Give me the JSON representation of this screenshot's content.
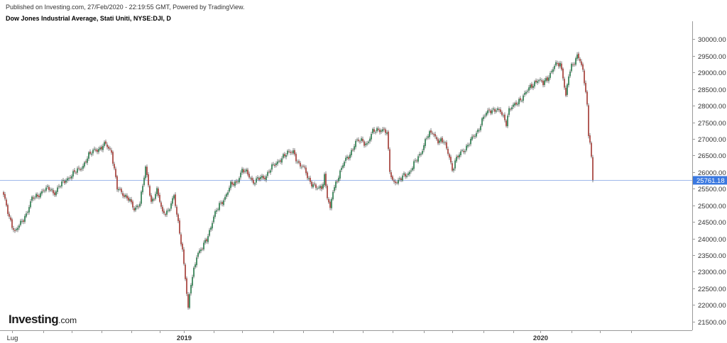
{
  "header": {
    "published": "Published on Investing.com, 27/Feb/2020 - 22:19:55 GMT, Powered by TradingView.",
    "title": "Dow Jones Industrial Average, Stati Uniti, NYSE:DJI, D"
  },
  "logo": {
    "main": "Investing",
    "suffix": ".com"
  },
  "chart_data": {
    "type": "candlestick",
    "title": "Dow Jones Industrial Average, Stati Uniti, NYSE:DJI, D",
    "ylim": [
      21300,
      30500
    ],
    "y_ticks": [
      30000,
      29500,
      29000,
      28500,
      28000,
      27500,
      27000,
      26500,
      26000,
      25500,
      25000,
      24500,
      24000,
      23500,
      23000,
      22500,
      22000,
      21500
    ],
    "y_tick_labels": [
      "30000.00",
      "29500.00",
      "29000.00",
      "28500.00",
      "28000.00",
      "27500.00",
      "27000.00",
      "26500.00",
      "26000.00",
      "25500.00",
      "25000.00",
      "24500.00",
      "24000.00",
      "23500.00",
      "23000.00",
      "22500.00",
      "22000.00",
      "21500.00"
    ],
    "x_labels": [
      {
        "label": "Lug",
        "index": 6,
        "bold": false
      },
      {
        "label": "2019",
        "index": 127,
        "bold": true
      },
      {
        "label": "2020",
        "index": 378,
        "bold": true
      }
    ],
    "x_minor_ticks": [
      28,
      48,
      69,
      90,
      110,
      148,
      168,
      190,
      211,
      232,
      253,
      274,
      296,
      316,
      338,
      359,
      400,
      420,
      442
    ],
    "price_line": {
      "value": 25761.18,
      "label": "25761.18",
      "color": "#3a78e0"
    },
    "up_color": "#2e7d4f",
    "down_color": "#a5403a",
    "grid": false,
    "anchors": [
      [
        0,
        25280
      ],
      [
        4,
        24650
      ],
      [
        8,
        24180
      ],
      [
        12,
        24450
      ],
      [
        16,
        24750
      ],
      [
        20,
        25180
      ],
      [
        24,
        25300
      ],
      [
        28,
        25450
      ],
      [
        32,
        25500
      ],
      [
        36,
        25380
      ],
      [
        40,
        25600
      ],
      [
        44,
        25780
      ],
      [
        48,
        25900
      ],
      [
        52,
        26050
      ],
      [
        56,
        26200
      ],
      [
        60,
        26480
      ],
      [
        64,
        26700
      ],
      [
        68,
        26680
      ],
      [
        72,
        26850
      ],
      [
        76,
        26620
      ],
      [
        80,
        25500
      ],
      [
        84,
        25350
      ],
      [
        88,
        25200
      ],
      [
        92,
        24850
      ],
      [
        96,
        25100
      ],
      [
        100,
        26100
      ],
      [
        104,
        25100
      ],
      [
        108,
        25450
      ],
      [
        112,
        24750
      ],
      [
        116,
        24850
      ],
      [
        120,
        25250
      ],
      [
        124,
        24200
      ],
      [
        126,
        23650
      ],
      [
        128,
        22800
      ],
      [
        130,
        21850
      ],
      [
        132,
        22650
      ],
      [
        136,
        23500
      ],
      [
        140,
        23700
      ],
      [
        144,
        24100
      ],
      [
        148,
        24650
      ],
      [
        152,
        25000
      ],
      [
        156,
        25250
      ],
      [
        160,
        25600
      ],
      [
        164,
        25700
      ],
      [
        168,
        26050
      ],
      [
        172,
        25950
      ],
      [
        176,
        25700
      ],
      [
        180,
        25800
      ],
      [
        184,
        25850
      ],
      [
        188,
        26100
      ],
      [
        192,
        26250
      ],
      [
        196,
        26450
      ],
      [
        200,
        26550
      ],
      [
        204,
        26650
      ],
      [
        208,
        26200
      ],
      [
        212,
        26100
      ],
      [
        216,
        25700
      ],
      [
        220,
        25500
      ],
      [
        224,
        25550
      ],
      [
        226,
        25900
      ],
      [
        228,
        25250
      ],
      [
        230,
        24850
      ],
      [
        232,
        25450
      ],
      [
        236,
        25900
      ],
      [
        240,
        26300
      ],
      [
        244,
        26550
      ],
      [
        248,
        26900
      ],
      [
        252,
        26950
      ],
      [
        256,
        26850
      ],
      [
        260,
        27200
      ],
      [
        264,
        27300
      ],
      [
        268,
        27250
      ],
      [
        270,
        27150
      ],
      [
        272,
        26050
      ],
      [
        274,
        25750
      ],
      [
        278,
        25700
      ],
      [
        282,
        25900
      ],
      [
        286,
        26000
      ],
      [
        290,
        26300
      ],
      [
        294,
        26600
      ],
      [
        298,
        27050
      ],
      [
        302,
        27200
      ],
      [
        306,
        26950
      ],
      [
        310,
        26900
      ],
      [
        314,
        26500
      ],
      [
        316,
        26050
      ],
      [
        318,
        26300
      ],
      [
        322,
        26600
      ],
      [
        326,
        26750
      ],
      [
        330,
        27000
      ],
      [
        334,
        27250
      ],
      [
        338,
        27650
      ],
      [
        342,
        27850
      ],
      [
        346,
        27900
      ],
      [
        350,
        27800
      ],
      [
        354,
        27500
      ],
      [
        356,
        27900
      ],
      [
        360,
        28000
      ],
      [
        364,
        28200
      ],
      [
        368,
        28400
      ],
      [
        372,
        28600
      ],
      [
        376,
        28800
      ],
      [
        380,
        28650
      ],
      [
        384,
        28900
      ],
      [
        388,
        29200
      ],
      [
        392,
        29250
      ],
      [
        394,
        28900
      ],
      [
        396,
        28300
      ],
      [
        398,
        28900
      ],
      [
        400,
        29150
      ],
      [
        402,
        29300
      ],
      [
        404,
        29550
      ],
      [
        406,
        29400
      ],
      [
        407,
        29200
      ],
      [
        408,
        29000
      ],
      [
        410,
        28400
      ],
      [
        411,
        27950
      ],
      [
        412,
        27100
      ],
      [
        413,
        26950
      ],
      [
        414,
        26500
      ],
      [
        415,
        25761
      ]
    ]
  }
}
